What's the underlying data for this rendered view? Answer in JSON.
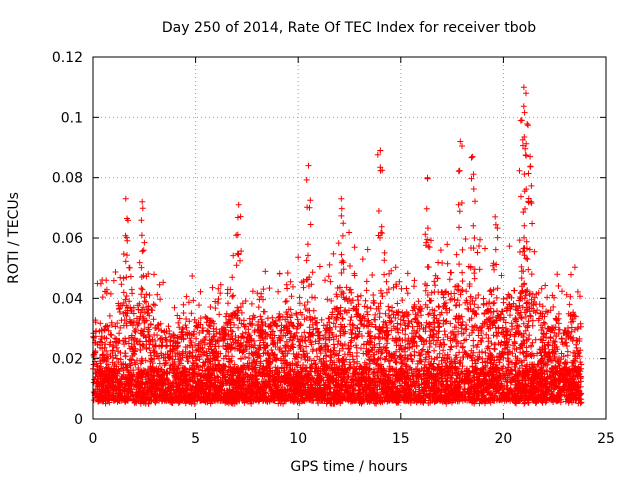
{
  "chart_data": {
    "type": "scatter",
    "title": "Day 250 of 2014, Rate Of TEC Index for receiver tbob",
    "xlabel": "GPS time / hours",
    "ylabel": "ROTI / TECUs",
    "xlim": [
      0,
      25
    ],
    "ylim": [
      0,
      0.12
    ],
    "x_ticks": [
      "0",
      "5",
      "10",
      "15",
      "20",
      "25"
    ],
    "y_ticks": [
      "0",
      "0.02",
      "0.04",
      "0.06",
      "0.08",
      "0.1",
      "0.12"
    ],
    "grid": true,
    "legend": "none",
    "marker": "plus",
    "series_color": "#ff0000",
    "data_range_hours": [
      0,
      23.8
    ],
    "density_profile": {
      "x": [
        0.0,
        0.5,
        1.0,
        1.5,
        2.0,
        2.5,
        3.0,
        3.5,
        4.0,
        4.5,
        5.0,
        5.5,
        6.0,
        6.5,
        7.0,
        7.5,
        8.0,
        8.5,
        9.0,
        9.5,
        10.0,
        10.5,
        11.0,
        11.5,
        12.0,
        12.5,
        13.0,
        13.5,
        14.0,
        14.5,
        15.0,
        15.5,
        16.0,
        16.5,
        17.0,
        17.5,
        18.0,
        18.5,
        19.0,
        19.5,
        20.0,
        20.5,
        21.0,
        21.5,
        22.0,
        22.5,
        23.0,
        23.5
      ],
      "typical_upper": [
        0.03,
        0.03,
        0.032,
        0.04,
        0.035,
        0.04,
        0.034,
        0.03,
        0.028,
        0.032,
        0.033,
        0.034,
        0.03,
        0.033,
        0.036,
        0.032,
        0.032,
        0.034,
        0.033,
        0.034,
        0.035,
        0.036,
        0.034,
        0.033,
        0.04,
        0.04,
        0.04,
        0.036,
        0.042,
        0.036,
        0.034,
        0.035,
        0.04,
        0.042,
        0.042,
        0.043,
        0.048,
        0.042,
        0.04,
        0.038,
        0.035,
        0.04,
        0.045,
        0.042,
        0.036,
        0.034,
        0.036,
        0.034
      ],
      "typical_lower": [
        0.006,
        0.006,
        0.006,
        0.006,
        0.006,
        0.006,
        0.006,
        0.006,
        0.006,
        0.006,
        0.006,
        0.006,
        0.006,
        0.006,
        0.006,
        0.006,
        0.006,
        0.006,
        0.006,
        0.006,
        0.006,
        0.006,
        0.006,
        0.006,
        0.006,
        0.006,
        0.006,
        0.006,
        0.006,
        0.006,
        0.006,
        0.006,
        0.006,
        0.006,
        0.006,
        0.006,
        0.006,
        0.006,
        0.006,
        0.006,
        0.006,
        0.006,
        0.006,
        0.006,
        0.006,
        0.006,
        0.006,
        0.006
      ]
    },
    "notable_peaks": [
      {
        "x": 1.6,
        "y": 0.073
      },
      {
        "x": 2.4,
        "y": 0.072
      },
      {
        "x": 7.1,
        "y": 0.071
      },
      {
        "x": 10.5,
        "y": 0.084
      },
      {
        "x": 12.1,
        "y": 0.073
      },
      {
        "x": 14.0,
        "y": 0.089
      },
      {
        "x": 16.3,
        "y": 0.08
      },
      {
        "x": 17.9,
        "y": 0.092
      },
      {
        "x": 18.5,
        "y": 0.087
      },
      {
        "x": 21.0,
        "y": 0.11
      },
      {
        "x": 21.1,
        "y": 0.108
      },
      {
        "x": 20.9,
        "y": 0.099
      },
      {
        "x": 21.3,
        "y": 0.087
      },
      {
        "x": 19.6,
        "y": 0.067
      }
    ]
  }
}
